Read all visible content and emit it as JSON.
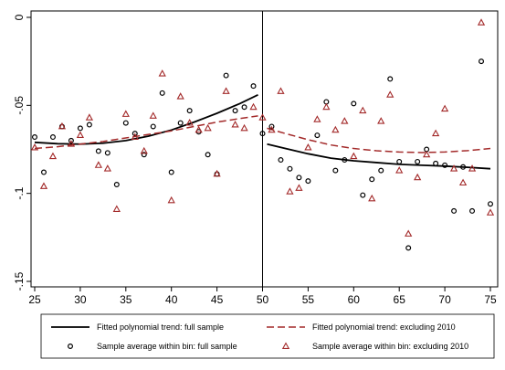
{
  "chart_data": {
    "type": "scatter",
    "title": "",
    "xlabel": "",
    "ylabel": "",
    "xlim": [
      24.5,
      75.5
    ],
    "ylim": [
      -0.15,
      0.0
    ],
    "x_ticks": [
      25,
      30,
      35,
      40,
      45,
      50,
      55,
      60,
      65,
      70,
      75
    ],
    "y_ticks": [
      0,
      -0.05,
      -0.1,
      -0.15
    ],
    "y_tick_labels": [
      "0",
      "-.05",
      "-.1",
      "-.15"
    ],
    "cutoff": 50,
    "grid": false,
    "legend_position": "bottom",
    "colors": {
      "full_sample": "#000000",
      "excl_2010": "#a32a2a"
    },
    "series": [
      {
        "name": "Fitted polynomial trend: full sample",
        "style": "line",
        "segments": [
          {
            "x": [
              25,
              27.5,
              30,
              32.5,
              35,
              37.5,
              40,
              42.5,
              45,
              47.5,
              49.5
            ],
            "y": [
              -0.071,
              -0.0718,
              -0.072,
              -0.0715,
              -0.07,
              -0.0675,
              -0.064,
              -0.0595,
              -0.0545,
              -0.049,
              -0.044
            ]
          },
          {
            "x": [
              50.5,
              52.5,
              55,
              57.5,
              60,
              62.5,
              65,
              67.5,
              70,
              72.5,
              75
            ],
            "y": [
              -0.072,
              -0.0745,
              -0.0775,
              -0.08,
              -0.0815,
              -0.0825,
              -0.0835,
              -0.084,
              -0.0845,
              -0.0852,
              -0.086
            ]
          }
        ]
      },
      {
        "name": "Fitted polynomial trend: excluding 2010",
        "style": "dashed",
        "segments": [
          {
            "x": [
              25,
              27.5,
              30,
              32.5,
              35,
              37.5,
              40,
              42.5,
              45,
              47.5,
              49.5
            ],
            "y": [
              -0.0745,
              -0.0735,
              -0.072,
              -0.0705,
              -0.0685,
              -0.0665,
              -0.0645,
              -0.062,
              -0.0595,
              -0.0575,
              -0.056
            ]
          },
          {
            "x": [
              50.5,
              52.5,
              55,
              57.5,
              60,
              62.5,
              65,
              67.5,
              70,
              72.5,
              75
            ],
            "y": [
              -0.063,
              -0.066,
              -0.0695,
              -0.0725,
              -0.0745,
              -0.0758,
              -0.0765,
              -0.0768,
              -0.0765,
              -0.0757,
              -0.0745
            ]
          }
        ]
      },
      {
        "name": "Sample average within bin: full sample",
        "style": "circle",
        "x": [
          25,
          26,
          27,
          28,
          29,
          30,
          31,
          32,
          33,
          34,
          35,
          36,
          37,
          38,
          39,
          40,
          41,
          42,
          43,
          44,
          45,
          46,
          47,
          48,
          49,
          50,
          51,
          52,
          53,
          54,
          55,
          56,
          57,
          58,
          59,
          60,
          61,
          62,
          63,
          64,
          65,
          66,
          67,
          68,
          69,
          70,
          71,
          72,
          73,
          74,
          75
        ],
        "y": [
          -0.068,
          -0.088,
          -0.068,
          -0.062,
          -0.07,
          -0.063,
          -0.061,
          -0.076,
          -0.077,
          -0.095,
          -0.06,
          -0.066,
          -0.078,
          -0.062,
          -0.043,
          -0.088,
          -0.06,
          -0.053,
          -0.065,
          -0.078,
          -0.089,
          -0.033,
          -0.053,
          -0.051,
          -0.039,
          -0.066,
          -0.062,
          -0.081,
          -0.086,
          -0.091,
          -0.093,
          -0.067,
          -0.048,
          -0.087,
          -0.081,
          -0.049,
          -0.101,
          -0.092,
          -0.087,
          -0.035,
          -0.082,
          -0.131,
          -0.082,
          -0.075,
          -0.083,
          -0.084,
          -0.11,
          -0.085,
          -0.11,
          -0.025,
          -0.106
        ]
      },
      {
        "name": "Sample average within bin: excluding 2010",
        "style": "triangle",
        "x": [
          25,
          26,
          27,
          28,
          29,
          30,
          31,
          32,
          33,
          34,
          35,
          36,
          37,
          38,
          39,
          40,
          41,
          42,
          43,
          44,
          45,
          46,
          47,
          48,
          49,
          50,
          51,
          52,
          53,
          54,
          55,
          56,
          57,
          58,
          59,
          60,
          61,
          62,
          63,
          64,
          65,
          66,
          67,
          68,
          69,
          70,
          71,
          72,
          73,
          74,
          75
        ],
        "y": [
          -0.074,
          -0.096,
          -0.079,
          -0.062,
          -0.072,
          -0.067,
          -0.057,
          -0.084,
          -0.086,
          -0.109,
          -0.055,
          -0.068,
          -0.076,
          -0.056,
          -0.032,
          -0.104,
          -0.045,
          -0.06,
          -0.064,
          -0.063,
          -0.089,
          -0.042,
          -0.061,
          -0.063,
          -0.051,
          -0.057,
          -0.064,
          -0.042,
          -0.099,
          -0.097,
          -0.074,
          -0.058,
          -0.051,
          -0.064,
          -0.059,
          -0.079,
          -0.053,
          -0.103,
          -0.059,
          -0.044,
          -0.087,
          -0.123,
          -0.091,
          -0.078,
          -0.066,
          -0.052,
          -0.086,
          -0.094,
          -0.086,
          -0.003,
          -0.111
        ]
      }
    ]
  }
}
